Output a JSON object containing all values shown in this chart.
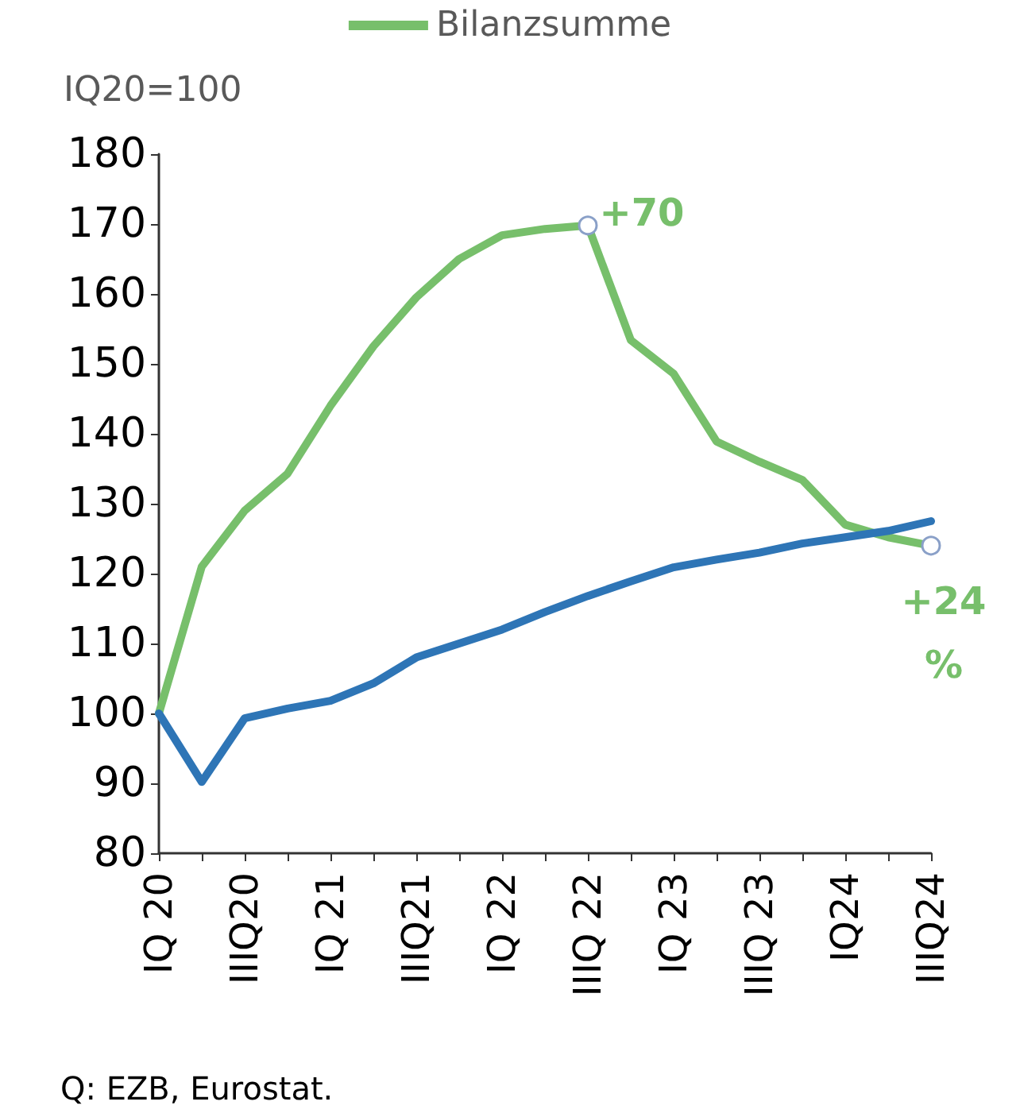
{
  "chart_data": {
    "type": "line",
    "ylabel": "IQ20=100",
    "categories": [
      "IQ 20",
      null,
      "IIIQ20",
      null,
      "IQ 21",
      null,
      "IIIQ21",
      null,
      "IQ 22",
      null,
      "IIIQ 22",
      null,
      "IQ 23",
      null,
      "IIIQ 23",
      null,
      "IQ24",
      null,
      "IIIQ24"
    ],
    "series": [
      {
        "name": "Bilanzsumme",
        "color": "#77bf6b",
        "values": [
          100,
          121,
          129,
          134.3,
          144,
          152.5,
          159.5,
          165,
          168.4,
          169.3,
          169.8,
          153.4,
          148.6,
          138.9,
          136,
          133.4,
          127,
          125.2,
          124
        ]
      },
      {
        "color": "#2e75b6",
        "values": [
          100,
          90.2,
          99.3,
          100.7,
          101.8,
          104.3,
          108,
          110,
          112,
          114.5,
          116.8,
          118.9,
          120.9,
          122,
          123,
          124.3,
          125.2,
          126.1,
          127.5
        ]
      }
    ],
    "ylim": [
      80,
      180
    ],
    "yticks": [
      80,
      90,
      100,
      110,
      120,
      130,
      140,
      150,
      160,
      170,
      180
    ],
    "grid": false,
    "legend": "top",
    "marker": "none",
    "line_style": "solid",
    "annotations": [
      {
        "text": "+70",
        "x": "IIIQ 22",
        "y": 169.8
      },
      {
        "text": "+24\n%",
        "x": "IIIQ24",
        "y": 124
      },
      "Q: EZB, Eurostat."
    ]
  }
}
